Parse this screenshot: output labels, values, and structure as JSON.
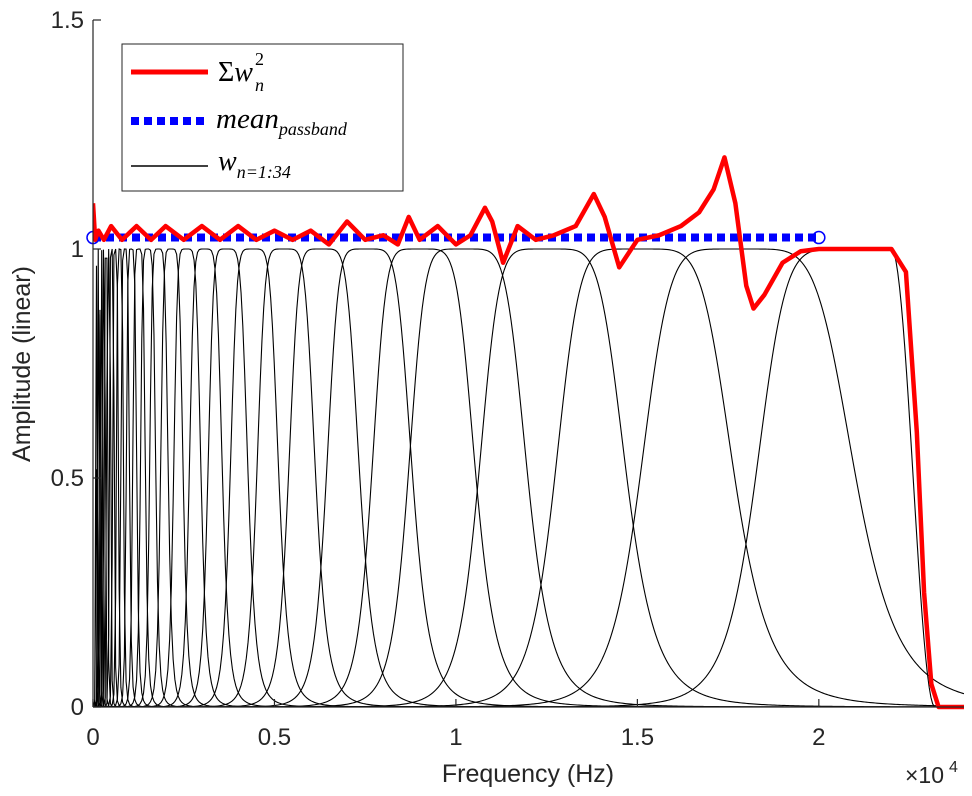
{
  "chart_data": {
    "type": "line",
    "xlabel": "Frequency (Hz)",
    "ylabel": "Amplitude (linear)",
    "x_exponent_base": "×10",
    "x_exponent_power": "4",
    "xlim": [
      0,
      24000
    ],
    "ylim": [
      0,
      1.5
    ],
    "grid": false,
    "legend_placement": "top-left",
    "x_ticks": [
      {
        "value": 0,
        "label": "0"
      },
      {
        "value": 5000,
        "label": "0.5"
      },
      {
        "value": 10000,
        "label": "1"
      },
      {
        "value": 15000,
        "label": "1.5"
      },
      {
        "value": 20000,
        "label": "2"
      }
    ],
    "y_ticks": [
      {
        "value": 0,
        "label": "0"
      },
      {
        "value": 0.5,
        "label": "0.5"
      },
      {
        "value": 1,
        "label": "1"
      },
      {
        "value": 1.5,
        "label": "1.5"
      }
    ],
    "legend": {
      "sum": {
        "sym": "Σ",
        "var": "w",
        "sup": "2",
        "sub": "n"
      },
      "mean": {
        "var": "mean",
        "sub": "passband"
      },
      "bands": {
        "var": "w",
        "sub": "n=1:34"
      }
    },
    "colors": {
      "sum": "#ff0000",
      "mean": "#0000ff",
      "bands": "#000000",
      "axis": "#262626"
    },
    "filter_bank": {
      "count": 34,
      "flat_top_centers_hz": [
        10200,
        12500,
        15000,
        17800,
        21000
      ],
      "ramp_start_hz": 22000,
      "ramp_end_hz": 23200
    },
    "series": [
      {
        "name": "mean_passband",
        "style": "dotted",
        "x": [
          0,
          20000
        ],
        "y": [
          1.025,
          1.025
        ]
      },
      {
        "name": "Σw_n^2",
        "style": "solid",
        "x": [
          0,
          60,
          150,
          300,
          500,
          800,
          1200,
          1600,
          2000,
          2500,
          3000,
          3500,
          4000,
          4500,
          5000,
          5500,
          6000,
          6500,
          7000,
          7500,
          8000,
          8400,
          8700,
          9000,
          9500,
          10000,
          10400,
          10800,
          11000,
          11300,
          11700,
          12200,
          12700,
          13300,
          13800,
          14100,
          14500,
          15000,
          15600,
          16200,
          16700,
          17100,
          17400,
          17700,
          18000,
          18200,
          18500,
          19000,
          19500,
          20000,
          21000,
          22000,
          22400,
          22700,
          22900,
          23100,
          23300,
          23700,
          24000
        ],
        "y": [
          1.1,
          1.02,
          1.04,
          1.02,
          1.05,
          1.02,
          1.05,
          1.02,
          1.05,
          1.02,
          1.05,
          1.02,
          1.05,
          1.02,
          1.04,
          1.02,
          1.04,
          1.01,
          1.06,
          1.02,
          1.03,
          1.01,
          1.07,
          1.02,
          1.05,
          1.01,
          1.03,
          1.09,
          1.06,
          0.97,
          1.05,
          1.02,
          1.03,
          1.05,
          1.12,
          1.07,
          0.96,
          1.02,
          1.03,
          1.05,
          1.08,
          1.13,
          1.2,
          1.1,
          0.92,
          0.87,
          0.9,
          0.97,
          0.995,
          1.0,
          1.0,
          1.0,
          0.95,
          0.6,
          0.25,
          0.05,
          0.0,
          0.0,
          0.0
        ]
      }
    ]
  }
}
